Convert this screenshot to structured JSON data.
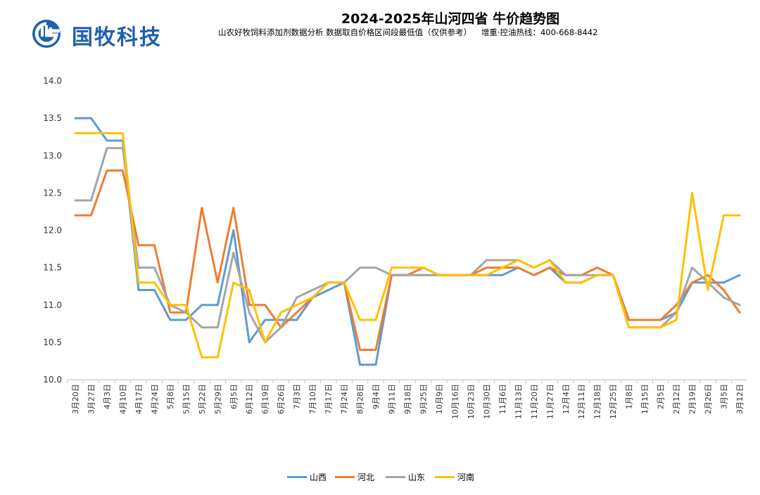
{
  "header": {
    "brand": "国牧科技",
    "title": "2024-2025年山河四省 牛价趋势图",
    "subtitle_main": "山农好牧饲料添加剂数据分析  数据取自价格区间段最低值（仅供参考）",
    "subtitle_hotline": "增重·控油热线：400-668-8442"
  },
  "colors": {
    "brand": "#1f5fae",
    "山西": "#5b9bd5",
    "河北": "#ed7d31",
    "山东": "#a5a5a5",
    "河南": "#ffc000"
  },
  "chart_data": {
    "type": "line",
    "ylim": [
      10.0,
      14.0
    ],
    "yticks": [
      "10.0",
      "10.5",
      "11.0",
      "11.5",
      "12.0",
      "12.5",
      "13.0",
      "13.5",
      "14.0"
    ],
    "grid": false,
    "legend_position": "bottom",
    "categories": [
      "3月20日",
      "3月27日",
      "4月3日",
      "4月10日",
      "4月17日",
      "4月24日",
      "5月8日",
      "5月15日",
      "5月22日",
      "5月29日",
      "6月5日",
      "6月12日",
      "6月19日",
      "6月26日",
      "7月3日",
      "7月10日",
      "7月17日",
      "7月24日",
      "8月28日",
      "9月4日",
      "9月11日",
      "9月18日",
      "9月25日",
      "10月9日",
      "10月16日",
      "10月23日",
      "10月30日",
      "11月6日",
      "11月13日",
      "11月20日",
      "11月27日",
      "12月4日",
      "12月11日",
      "12月18日",
      "12月25日",
      "1月8日",
      "1月15日",
      "2月5日",
      "2月12日",
      "2月19日",
      "2月26日",
      "3月5日",
      "3月12日"
    ],
    "series": [
      {
        "name": "山西",
        "values": [
          13.5,
          13.5,
          13.2,
          13.2,
          11.2,
          11.2,
          10.8,
          10.8,
          11.0,
          11.0,
          12.0,
          10.5,
          10.8,
          10.8,
          10.8,
          11.1,
          11.2,
          11.3,
          10.2,
          10.2,
          11.4,
          11.4,
          11.4,
          11.4,
          11.4,
          11.4,
          11.4,
          11.4,
          11.5,
          11.4,
          11.5,
          11.3,
          11.3,
          11.4,
          11.4,
          10.8,
          10.8,
          10.8,
          10.9,
          11.3,
          11.3,
          11.3,
          11.4
        ]
      },
      {
        "name": "河北",
        "values": [
          12.2,
          12.2,
          12.8,
          12.8,
          11.8,
          11.8,
          10.9,
          10.9,
          12.3,
          11.3,
          12.3,
          11.0,
          11.0,
          10.7,
          10.9,
          11.1,
          11.3,
          11.3,
          10.4,
          10.4,
          11.4,
          11.4,
          11.5,
          11.4,
          11.4,
          11.4,
          11.5,
          11.5,
          11.5,
          11.4,
          11.5,
          11.4,
          11.4,
          11.5,
          11.4,
          10.8,
          10.8,
          10.8,
          11.0,
          11.3,
          11.4,
          11.2,
          10.9
        ]
      },
      {
        "name": "山东",
        "values": [
          12.4,
          12.4,
          13.1,
          13.1,
          11.5,
          11.5,
          11.0,
          10.9,
          10.7,
          10.7,
          11.7,
          10.9,
          10.5,
          10.7,
          11.1,
          11.2,
          11.3,
          11.3,
          11.5,
          11.5,
          11.4,
          11.4,
          11.4,
          11.4,
          11.4,
          11.4,
          11.6,
          11.6,
          11.6,
          11.5,
          11.6,
          11.4,
          11.4,
          11.4,
          11.4,
          10.7,
          10.7,
          10.7,
          10.9,
          11.5,
          11.3,
          11.1,
          11.0
        ]
      },
      {
        "name": "河南",
        "values": [
          13.3,
          13.3,
          13.3,
          13.3,
          11.3,
          11.3,
          11.0,
          11.0,
          10.3,
          10.3,
          11.3,
          11.2,
          10.5,
          10.9,
          11.0,
          11.1,
          11.3,
          11.3,
          10.8,
          10.8,
          11.5,
          11.5,
          11.5,
          11.4,
          11.4,
          11.4,
          11.4,
          11.5,
          11.6,
          11.5,
          11.6,
          11.3,
          11.3,
          11.4,
          11.4,
          10.7,
          10.7,
          10.7,
          10.8,
          12.5,
          11.2,
          12.2,
          12.2
        ]
      }
    ]
  }
}
